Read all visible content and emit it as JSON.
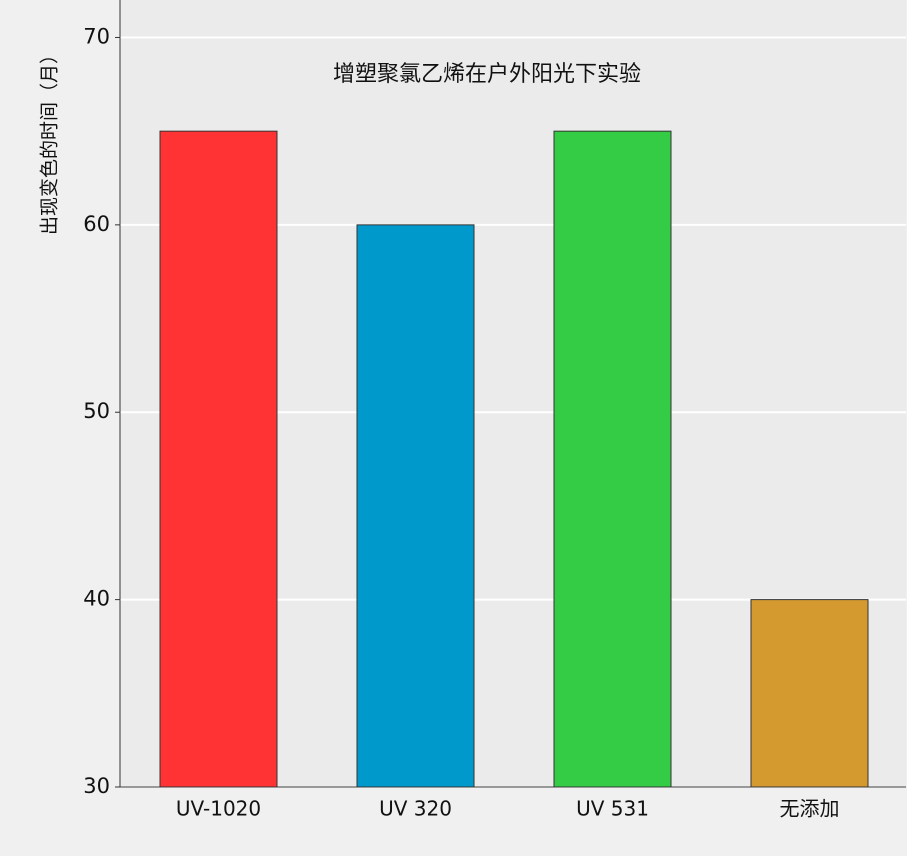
{
  "chart_data": {
    "type": "bar",
    "title": "增塑聚氯乙烯在户外阳光下实验",
    "y_label": "出现变色的时间（月）",
    "categories": [
      "UV-1020",
      "UV 320",
      "UV 531",
      "无添加"
    ],
    "values": [
      65,
      60,
      65,
      40
    ],
    "colors": [
      "#ff3333",
      "#0099cc",
      "#33cc44",
      "#d49a30"
    ],
    "ylim": [
      30,
      72
    ],
    "yticks": [
      30,
      40,
      50,
      60,
      70
    ],
    "grid": true
  }
}
